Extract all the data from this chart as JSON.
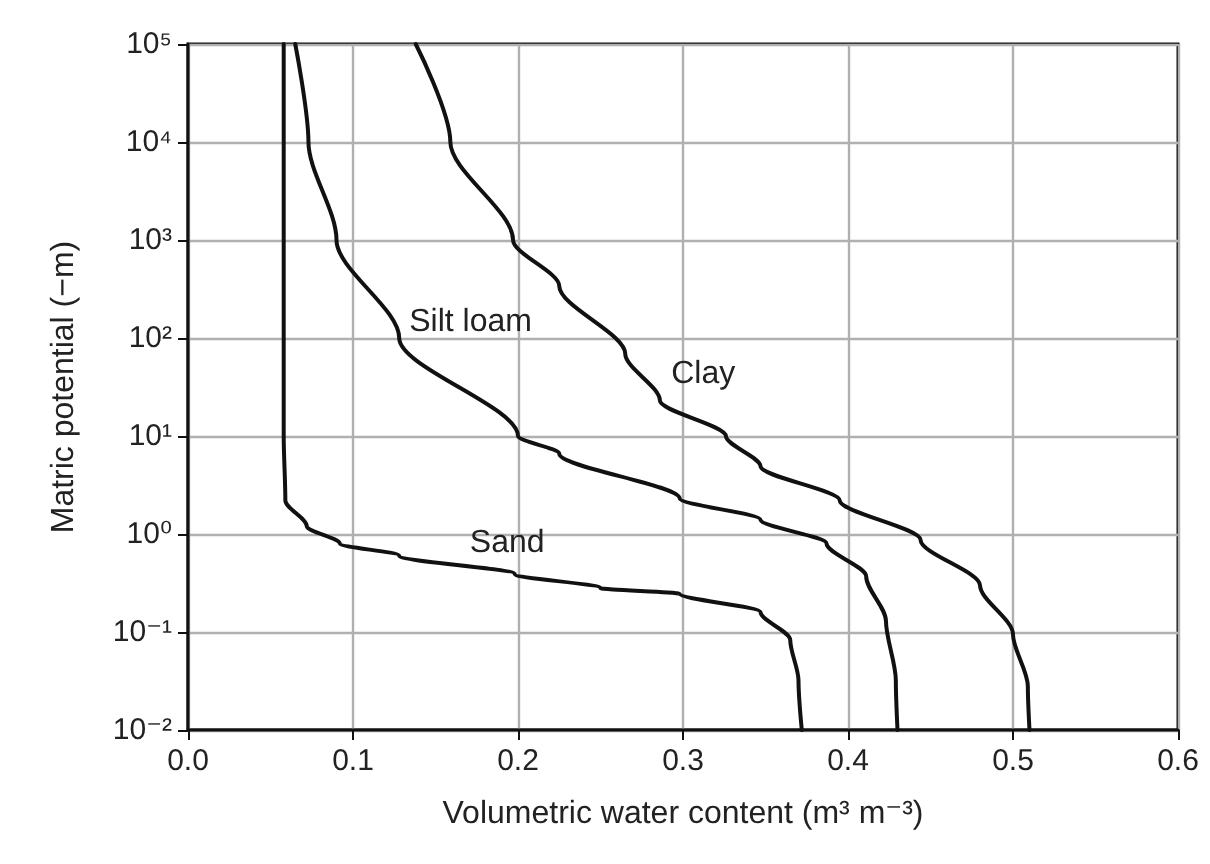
{
  "chart_data": {
    "type": "line",
    "xlabel": "Volumetric water content (m³ m⁻³)",
    "ylabel": "Matric potential (−m)",
    "xlim": [
      0,
      0.6
    ],
    "xticks": [
      {
        "value": 0,
        "label": "0.0"
      },
      0.1,
      0.2,
      0.3,
      0.4,
      0.5,
      0.6
    ],
    "ylim": [
      0.01,
      100000
    ],
    "log": "y",
    "yticks": [
      {
        "value": 0.01,
        "label": "10⁻²"
      },
      {
        "value": 0.1,
        "label": "10⁻¹"
      },
      {
        "value": 1,
        "label": "10⁰"
      },
      {
        "value": 10,
        "label": "10¹"
      },
      {
        "value": 100,
        "label": "10²"
      },
      {
        "value": 1000,
        "label": "10³"
      },
      {
        "value": 10000,
        "label": "10⁴"
      },
      {
        "value": 100000,
        "label": "10⁵"
      }
    ],
    "grid": true,
    "legend": false,
    "marker": "none",
    "line_style": "solid",
    "series": [
      {
        "name": "Sand",
        "color": "#111111",
        "x": [
          0.058,
          0.058,
          0.058,
          0.059,
          0.072,
          0.092,
          0.128,
          0.198,
          0.25,
          0.298,
          0.347,
          0.365,
          0.37,
          0.372
        ],
        "values": [
          100000,
          1000,
          10,
          2.2,
          1.2,
          0.8,
          0.6,
          0.39,
          0.28,
          0.245,
          0.16,
          0.083,
          0.032,
          0.01
        ]
      },
      {
        "name": "Silt loam",
        "color": "#111111",
        "x": [
          0.065,
          0.073,
          0.09,
          0.128,
          0.2,
          0.225,
          0.298,
          0.347,
          0.387,
          0.411,
          0.423,
          0.429,
          0.43
        ],
        "values": [
          100000,
          10000,
          1000,
          100,
          10,
          6.6,
          2.3,
          1.4,
          0.8,
          0.37,
          0.13,
          0.032,
          0.01
        ]
      },
      {
        "name": "Clay",
        "color": "#111111",
        "x": [
          0.138,
          0.159,
          0.197,
          0.225,
          0.265,
          0.286,
          0.326,
          0.347,
          0.395,
          0.444,
          0.48,
          0.5,
          0.509,
          0.51
        ],
        "values": [
          100000,
          10000,
          1000,
          340,
          69,
          23,
          10,
          4.9,
          2.2,
          0.87,
          0.3,
          0.095,
          0.028,
          0.01
        ]
      }
    ]
  }
}
